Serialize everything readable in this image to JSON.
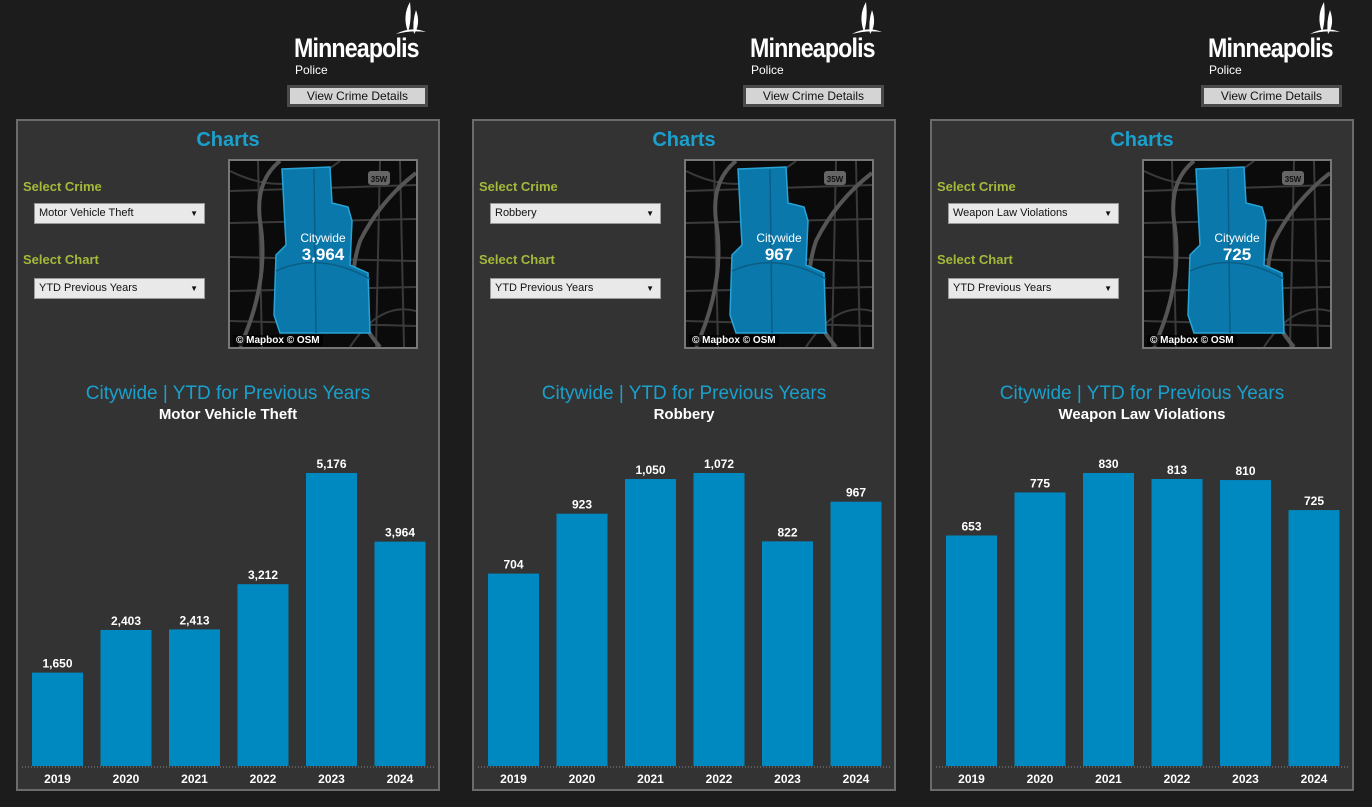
{
  "panels": [
    {
      "logo": {
        "name": "Minneapolis",
        "sub": "Police"
      },
      "details_button": "View Crime Details",
      "title": "Charts",
      "select_crime_label": "Select Crime",
      "crime_value": "Motor Vehicle Theft",
      "select_chart_label": "Select Chart",
      "chart_value": "YTD Previous Years",
      "map": {
        "area": "Citywide",
        "value": "3,964",
        "credit": "© Mapbox  © OSM",
        "highway": "35W"
      },
      "chart_title": "Citywide | YTD for Previous Years",
      "chart_subtitle": "Motor Vehicle Theft"
    },
    {
      "logo": {
        "name": "Minneapolis",
        "sub": "Police"
      },
      "details_button": "View Crime Details",
      "title": "Charts",
      "select_crime_label": "Select Crime",
      "crime_value": "Robbery",
      "select_chart_label": "Select Chart",
      "chart_value": "YTD Previous Years",
      "map": {
        "area": "Citywide",
        "value": "967",
        "credit": "© Mapbox  © OSM",
        "highway": "35W"
      },
      "chart_title": "Citywide | YTD for Previous Years",
      "chart_subtitle": "Robbery"
    },
    {
      "logo": {
        "name": "Minneapolis",
        "sub": "Police"
      },
      "details_button": "View Crime Details",
      "title": "Charts",
      "select_crime_label": "Select Crime",
      "crime_value": "Weapon Law Violations",
      "select_chart_label": "Select Chart",
      "chart_value": "YTD Previous Years",
      "map": {
        "area": "Citywide",
        "value": "725",
        "credit": "© Mapbox  © OSM",
        "highway": "35W"
      },
      "chart_title": "Citywide | YTD for Previous Years",
      "chart_subtitle": "Weapon Law Violations"
    }
  ],
  "colors": {
    "accent": "#1aa0cc",
    "bar": "#0088c0",
    "label_green": "#a4b93a",
    "background": "#1c1c1c",
    "panel": "#333333"
  },
  "icons": {
    "logo": "minneapolis-sail-icon",
    "dropdown": "chevron-down-icon"
  },
  "chart_data": [
    {
      "type": "bar",
      "title": "Citywide | YTD for Previous Years",
      "subtitle": "Motor Vehicle Theft",
      "categories": [
        "2019",
        "2020",
        "2021",
        "2022",
        "2023",
        "2024"
      ],
      "values": [
        1650,
        2403,
        2413,
        3212,
        5176,
        3964
      ],
      "labels": [
        "1,650",
        "2,403",
        "2,413",
        "3,212",
        "5,176",
        "3,964"
      ],
      "xlabel": "",
      "ylabel": "",
      "ylim": [
        0,
        5176
      ],
      "grid": false,
      "legend": "none"
    },
    {
      "type": "bar",
      "title": "Citywide | YTD for Previous Years",
      "subtitle": "Robbery",
      "categories": [
        "2019",
        "2020",
        "2021",
        "2022",
        "2023",
        "2024"
      ],
      "values": [
        704,
        923,
        1050,
        1072,
        822,
        967
      ],
      "labels": [
        "704",
        "923",
        "1,050",
        "1,072",
        "822",
        "967"
      ],
      "xlabel": "",
      "ylabel": "",
      "ylim": [
        0,
        1072
      ],
      "grid": false,
      "legend": "none"
    },
    {
      "type": "bar",
      "title": "Citywide | YTD for Previous Years",
      "subtitle": "Weapon Law Violations",
      "categories": [
        "2019",
        "2020",
        "2021",
        "2022",
        "2023",
        "2024"
      ],
      "values": [
        653,
        775,
        830,
        813,
        810,
        725
      ],
      "labels": [
        "653",
        "775",
        "830",
        "813",
        "810",
        "725"
      ],
      "xlabel": "",
      "ylabel": "",
      "ylim": [
        0,
        830
      ],
      "grid": false,
      "legend": "none"
    }
  ]
}
